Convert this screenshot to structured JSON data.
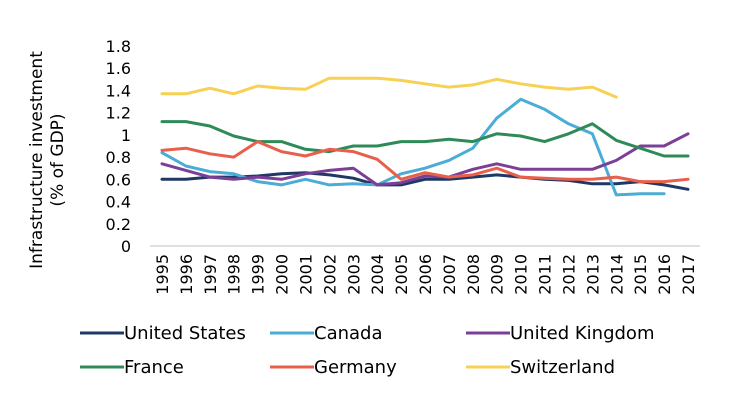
{
  "chart_data": {
    "type": "line",
    "ylabel_line1": "Infrastructure investment",
    "ylabel_line2": "(% of GDP)",
    "ylim": [
      0,
      1.8
    ],
    "ytick_step": 0.2,
    "yticks": [
      "0",
      "0.2",
      "0.4",
      "0.6",
      "0.8",
      "1",
      "1.2",
      "1.4",
      "1.6",
      "1.8"
    ],
    "grid": false,
    "legend_position": "bottom",
    "x": [
      "1995",
      "1996",
      "1997",
      "1998",
      "1999",
      "2000",
      "2001",
      "2002",
      "2003",
      "2004",
      "2005",
      "2006",
      "2007",
      "2008",
      "2009",
      "2010",
      "2011",
      "2012",
      "2013",
      "2014",
      "2015",
      "2016",
      "2017"
    ],
    "series": [
      {
        "name": "United States",
        "color": "#1f3864",
        "values": [
          0.6,
          0.6,
          0.62,
          0.62,
          0.63,
          0.65,
          0.66,
          0.64,
          0.61,
          0.55,
          0.55,
          0.6,
          0.6,
          0.62,
          0.64,
          0.62,
          0.6,
          0.59,
          0.56,
          0.56,
          0.58,
          0.55,
          0.51
        ]
      },
      {
        "name": "Canada",
        "color": "#4bacd6",
        "values": [
          0.84,
          0.72,
          0.67,
          0.65,
          0.58,
          0.55,
          0.6,
          0.55,
          0.56,
          0.55,
          0.65,
          0.7,
          0.77,
          0.88,
          1.15,
          1.32,
          1.23,
          1.1,
          1.01,
          0.46,
          0.47,
          0.47,
          null
        ]
      },
      {
        "name": "United Kingdom",
        "color": "#7b3f98",
        "values": [
          0.74,
          0.68,
          0.62,
          0.6,
          0.62,
          0.6,
          0.65,
          0.68,
          0.7,
          0.55,
          0.57,
          0.63,
          0.62,
          0.69,
          0.74,
          0.69,
          0.69,
          0.69,
          0.69,
          0.77,
          0.9,
          0.9,
          1.01
        ]
      },
      {
        "name": "France",
        "color": "#2e8b57",
        "values": [
          1.12,
          1.12,
          1.08,
          0.99,
          0.94,
          0.94,
          0.87,
          0.85,
          0.9,
          0.9,
          0.94,
          0.94,
          0.96,
          0.94,
          1.01,
          0.99,
          0.94,
          1.01,
          1.1,
          0.95,
          0.88,
          0.81,
          0.81
        ]
      },
      {
        "name": "Germany",
        "color": "#e8604c",
        "values": [
          0.86,
          0.88,
          0.83,
          0.8,
          0.94,
          0.85,
          0.81,
          0.87,
          0.85,
          0.78,
          0.6,
          0.66,
          0.62,
          0.64,
          0.7,
          0.62,
          0.61,
          0.6,
          0.6,
          0.62,
          0.58,
          0.58,
          0.6
        ]
      },
      {
        "name": "Switzerland",
        "color": "#f7d154",
        "values": [
          1.37,
          1.37,
          1.42,
          1.37,
          1.44,
          1.42,
          1.41,
          1.51,
          1.51,
          1.51,
          1.49,
          1.46,
          1.43,
          1.45,
          1.5,
          1.46,
          1.43,
          1.41,
          1.43,
          1.34,
          null,
          null,
          null
        ]
      }
    ]
  }
}
